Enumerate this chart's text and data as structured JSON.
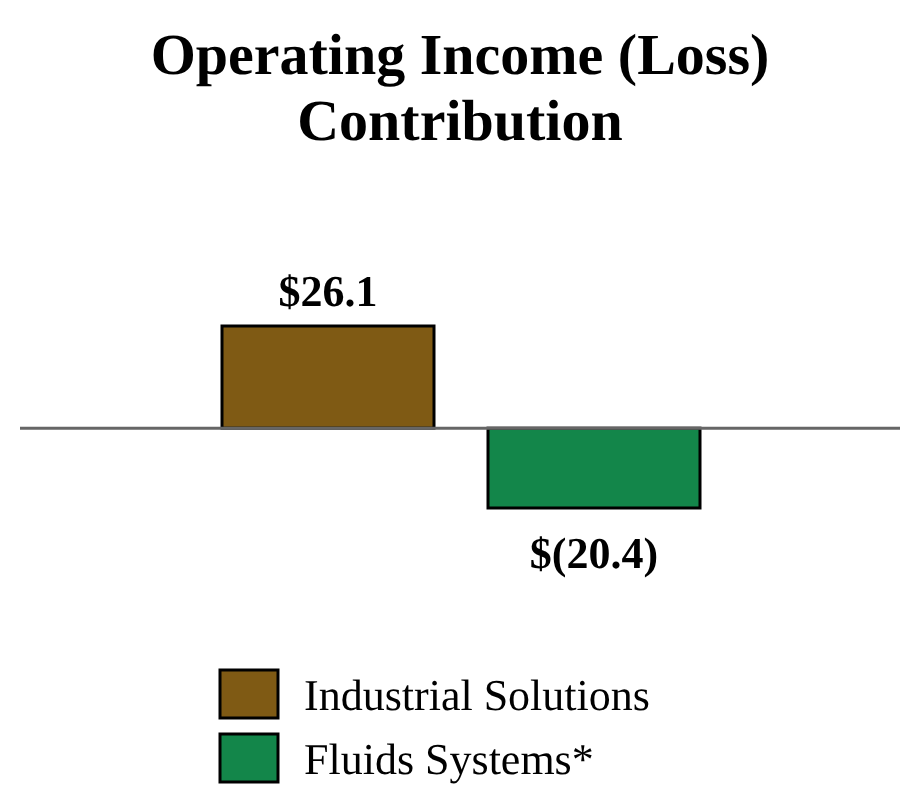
{
  "chart_data": {
    "type": "bar",
    "title": "Operating Income (Loss) Contribution",
    "categories": [
      null
    ],
    "legend": "bottom",
    "series": [
      {
        "name": "Industrial Solutions",
        "color": "#7f5a14",
        "values": [
          26.1
        ],
        "value_labels": [
          "$26.1"
        ]
      },
      {
        "name": "Fluids Systems*",
        "color": "#13864a",
        "values": [
          -20.4
        ],
        "value_labels": [
          "$(20.4)"
        ]
      }
    ]
  }
}
